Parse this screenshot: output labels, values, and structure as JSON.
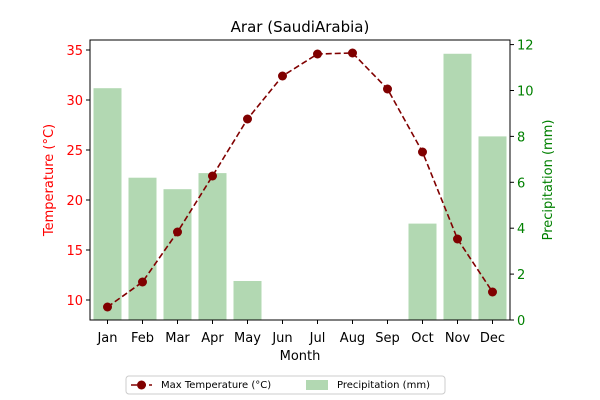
{
  "chart_data": {
    "type": "bar+line",
    "title": "Arar (SaudiArabia)",
    "xlabel": "Month",
    "categories": [
      "Jan",
      "Feb",
      "Mar",
      "Apr",
      "May",
      "Jun",
      "Jul",
      "Aug",
      "Sep",
      "Oct",
      "Nov",
      "Dec"
    ],
    "y_left": {
      "label": "Temperature (°C)",
      "color": "#ff0000",
      "lim": [
        8,
        36
      ],
      "ticks": [
        "10",
        "15",
        "20",
        "25",
        "30",
        "35"
      ]
    },
    "y_right": {
      "label": "Precipitation (mm)",
      "color": "#008000",
      "lim": [
        0,
        12.2
      ],
      "ticks": [
        "0",
        "2",
        "4",
        "6",
        "8",
        "10",
        "12"
      ]
    },
    "series": [
      {
        "name": "Max Temperature (°C)",
        "kind": "line",
        "axis": "left",
        "color": "#800000",
        "values": [
          9.3,
          11.8,
          16.8,
          22.4,
          28.1,
          32.4,
          34.6,
          34.7,
          31.1,
          24.8,
          16.1,
          10.8
        ]
      },
      {
        "name": "Precipitation (mm)",
        "kind": "bar",
        "axis": "right",
        "color": "#b2d8b2",
        "values": [
          10.1,
          6.2,
          5.7,
          6.4,
          1.7,
          0,
          0,
          0,
          0,
          4.2,
          11.6,
          8.0
        ]
      }
    ],
    "grid": false,
    "legend_position": "bottom-center"
  }
}
